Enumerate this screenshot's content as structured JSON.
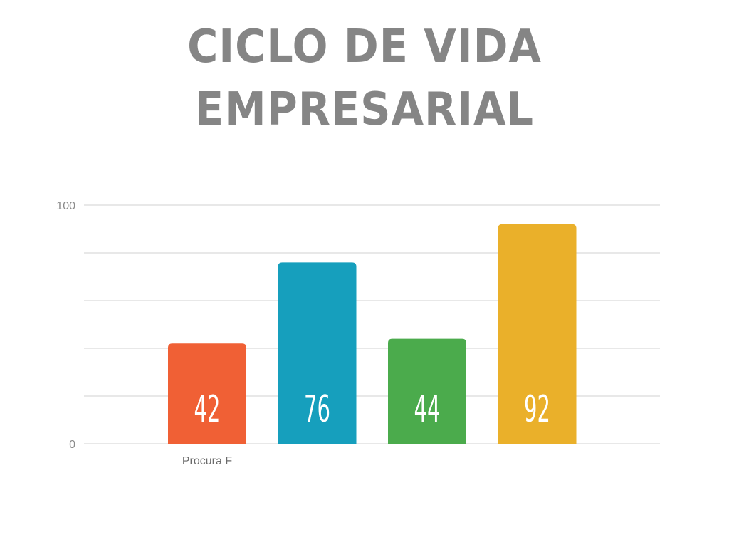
{
  "title": "CICLO DE VIDA EMPRESARIAL",
  "chart_data": {
    "type": "bar",
    "categories": [
      "Procura F",
      "",
      "",
      ""
    ],
    "values": [
      42,
      76,
      44,
      92
    ],
    "colors": [
      "#f06035",
      "#169fbd",
      "#4bab4c",
      "#eab02a"
    ],
    "ylim": [
      0,
      100
    ],
    "yticks": [
      "0",
      "100"
    ],
    "grid": true,
    "data_labels": [
      "42",
      "76",
      "44",
      "92"
    ]
  }
}
